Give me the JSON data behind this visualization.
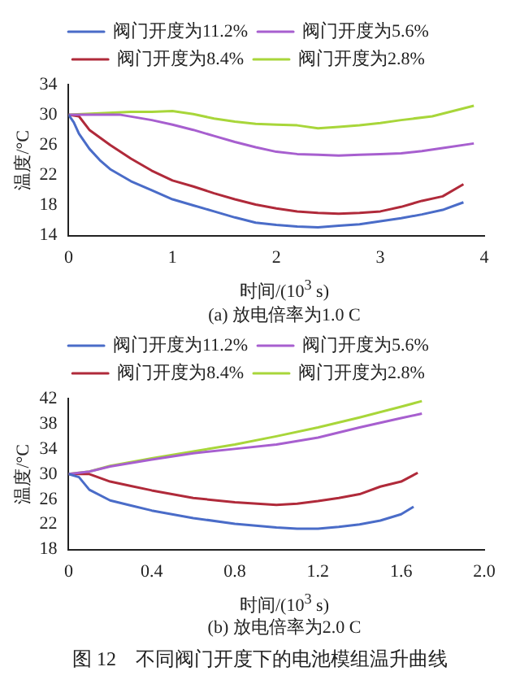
{
  "chart_data": [
    {
      "type": "line",
      "title": "(a) 放电倍率为1.0 C",
      "xlabel": "时间/(10$^{3}$ s)",
      "ylabel": "温度/°C",
      "xlim": [
        0,
        4
      ],
      "xticks": [
        0,
        1,
        2,
        3,
        4
      ],
      "ylim": [
        14,
        34
      ],
      "yticks": [
        14,
        18,
        22,
        26,
        30,
        34
      ],
      "legend": "top",
      "grid": false,
      "marker": "none",
      "line_style": "solid",
      "series": [
        {
          "name": "阀门开度为11.2%",
          "color": "#4a6cc8",
          "x": [
            0,
            0.05,
            0.1,
            0.2,
            0.3,
            0.4,
            0.6,
            0.8,
            1.0,
            1.2,
            1.4,
            1.6,
            1.8,
            2.0,
            2.2,
            2.4,
            2.6,
            2.8,
            3.0,
            3.2,
            3.4,
            3.6,
            3.8
          ],
          "values": [
            30,
            29,
            27.5,
            25.5,
            24,
            22.8,
            21.2,
            20,
            18.8,
            18,
            17.2,
            16.4,
            15.7,
            15.4,
            15.2,
            15.1,
            15.3,
            15.5,
            15.9,
            16.3,
            16.8,
            17.4,
            18.4
          ]
        },
        {
          "name": "阀门开度为5.6%",
          "color": "#a75fcf",
          "x": [
            0,
            0.2,
            0.5,
            0.8,
            1.0,
            1.2,
            1.4,
            1.6,
            1.8,
            2.0,
            2.2,
            2.4,
            2.6,
            2.8,
            3.0,
            3.2,
            3.4,
            3.6,
            3.9
          ],
          "values": [
            30,
            30,
            30,
            29.3,
            28.7,
            28,
            27.2,
            26.4,
            25.7,
            25.1,
            24.8,
            24.7,
            24.6,
            24.7,
            24.8,
            24.9,
            25.2,
            25.6,
            26.2
          ]
        },
        {
          "name": "阀门开度为8.4%",
          "color": "#b02a3a",
          "x": [
            0,
            0.1,
            0.2,
            0.4,
            0.6,
            0.8,
            1.0,
            1.2,
            1.4,
            1.6,
            1.8,
            2.0,
            2.2,
            2.4,
            2.6,
            2.8,
            3.0,
            3.2,
            3.4,
            3.6,
            3.8
          ],
          "values": [
            30,
            29.8,
            28,
            26,
            24.2,
            22.6,
            21.3,
            20.5,
            19.6,
            18.8,
            18.1,
            17.6,
            17.2,
            17,
            16.9,
            17,
            17.2,
            17.8,
            18.6,
            19.2,
            20.8
          ]
        },
        {
          "name": "阀门开度为2.8%",
          "color": "#a8d63a",
          "x": [
            0,
            0.3,
            0.6,
            0.8,
            1.0,
            1.2,
            1.4,
            1.6,
            1.8,
            2.0,
            2.2,
            2.4,
            2.6,
            2.8,
            3.0,
            3.2,
            3.5,
            3.7,
            3.9
          ],
          "values": [
            30,
            30.2,
            30.4,
            30.4,
            30.5,
            30.1,
            29.5,
            29.1,
            28.8,
            28.7,
            28.6,
            28.2,
            28.4,
            28.6,
            28.9,
            29.3,
            29.8,
            30.5,
            31.2
          ]
        }
      ]
    },
    {
      "type": "line",
      "title": "(b) 放电倍率为2.0 C",
      "xlabel": "时间/(10$^{3}$ s)",
      "ylabel": "温度/°C",
      "xlim": [
        0,
        2
      ],
      "xticks": [
        0,
        0.4,
        0.8,
        1.2,
        1.6,
        {
          "value": 2,
          "label": "2.0"
        }
      ],
      "ylim": [
        18,
        42
      ],
      "yticks": [
        18,
        22,
        26,
        30,
        34,
        38,
        42
      ],
      "legend": "top",
      "grid": false,
      "marker": "none",
      "line_style": "solid",
      "annotations": [
        "图 12　不同阀门开度下的电池模组温升曲线"
      ],
      "series": [
        {
          "name": "阀门开度为11.2%",
          "color": "#4a6cc8",
          "x": [
            0,
            0.05,
            0.1,
            0.2,
            0.3,
            0.4,
            0.6,
            0.8,
            1.0,
            1.1,
            1.2,
            1.3,
            1.4,
            1.5,
            1.6,
            1.66
          ],
          "values": [
            30,
            29.5,
            27.5,
            25.8,
            25,
            24.2,
            23,
            22.1,
            21.5,
            21.3,
            21.3,
            21.6,
            22,
            22.6,
            23.6,
            24.8
          ]
        },
        {
          "name": "阀门开度为5.6%",
          "color": "#a75fcf",
          "x": [
            0,
            0.1,
            0.2,
            0.4,
            0.6,
            0.8,
            1.0,
            1.2,
            1.4,
            1.6,
            1.7
          ],
          "values": [
            30,
            30.4,
            31.2,
            32.3,
            33.3,
            34,
            34.7,
            35.8,
            37.4,
            38.9,
            39.6
          ]
        },
        {
          "name": "阀门开度为8.4%",
          "color": "#b02a3a",
          "x": [
            0,
            0.1,
            0.2,
            0.3,
            0.4,
            0.6,
            0.8,
            1.0,
            1.1,
            1.2,
            1.3,
            1.4,
            1.5,
            1.6,
            1.68
          ],
          "values": [
            30,
            30,
            28.8,
            28.1,
            27.4,
            26.2,
            25.5,
            25.1,
            25.3,
            25.7,
            26.2,
            26.8,
            28,
            28.8,
            30.2
          ]
        },
        {
          "name": "阀门开度为2.8%",
          "color": "#a8d63a",
          "x": [
            0,
            0.1,
            0.2,
            0.4,
            0.6,
            0.8,
            1.0,
            1.2,
            1.4,
            1.6,
            1.7
          ],
          "values": [
            30,
            30.4,
            31.3,
            32.5,
            33.6,
            34.7,
            36,
            37.4,
            39,
            40.7,
            41.6
          ]
        }
      ]
    }
  ]
}
